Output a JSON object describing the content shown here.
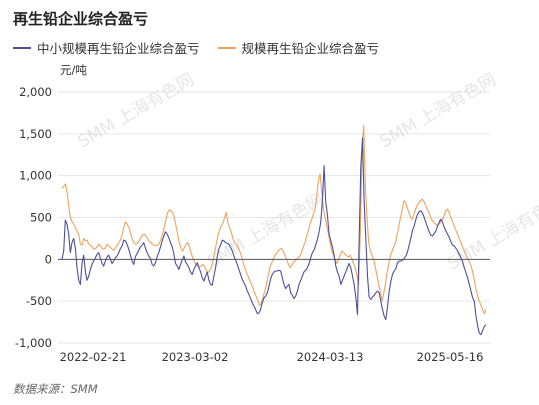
{
  "title": "再生铅企业综合盈亏",
  "source": "数据来源：SMM",
  "watermark": "SMM 上海有色网",
  "colors": {
    "small": "#4d4f9a",
    "large": "#f0a35e",
    "grid": "#e6e6e6",
    "zero": "#555555"
  },
  "chart_data": {
    "type": "line",
    "title": "再生铅企业综合盈亏",
    "ylabel": "元/吨",
    "ylim": [
      -1000,
      2000
    ],
    "yticks": [
      2000,
      1500,
      1000,
      500,
      0,
      -500,
      -1000
    ],
    "ytick_labels": [
      "2,000",
      "1,500",
      "1,000",
      "500",
      "0",
      "-500",
      "-1,000"
    ],
    "xtick_labels": [
      "2022-02-21",
      "2023-03-02",
      "2024-03-13",
      "2025-05-16"
    ],
    "grid": true,
    "legend": "top-left",
    "series": [
      {
        "name": "中小规模再生铅企业综合盈亏",
        "color": "#4d4f9a",
        "values": [
          0,
          100,
          470,
          420,
          300,
          80,
          200,
          250,
          130,
          -100,
          -250,
          -300,
          -50,
          50,
          -150,
          -250,
          -200,
          -120,
          -60,
          -20,
          20,
          60,
          80,
          10,
          -50,
          -80,
          -20,
          30,
          50,
          0,
          -50,
          -20,
          20,
          40,
          80,
          130,
          160,
          230,
          220,
          180,
          120,
          50,
          -20,
          -60,
          30,
          70,
          110,
          150,
          170,
          200,
          130,
          80,
          40,
          10,
          -60,
          -80,
          -40,
          30,
          80,
          150,
          220,
          280,
          330,
          300,
          260,
          200,
          150,
          70,
          -50,
          -80,
          -120,
          -60,
          -10,
          40,
          -30,
          -60,
          -100,
          -150,
          -180,
          -120,
          -80,
          -40,
          -100,
          -150,
          -220,
          -260,
          -200,
          -150,
          -250,
          -300,
          -310,
          -200,
          -100,
          30,
          130,
          170,
          230,
          220,
          200,
          190,
          180,
          140,
          100,
          40,
          -10,
          -60,
          -120,
          -180,
          -240,
          -280,
          -320,
          -380,
          -420,
          -470,
          -520,
          -560,
          -600,
          -650,
          -640,
          -600,
          -520,
          -460,
          -440,
          -400,
          -320,
          -230,
          -180,
          -150,
          -140,
          -140,
          -130,
          -140,
          -220,
          -300,
          -350,
          -320,
          -300,
          -400,
          -430,
          -470,
          -440,
          -380,
          -300,
          -250,
          -200,
          -150,
          -130,
          -100,
          -50,
          20,
          80,
          110,
          170,
          240,
          330,
          440,
          700,
          1120,
          690,
          530,
          300,
          220,
          150,
          50,
          -80,
          -150,
          -200,
          -300,
          -250,
          -200,
          -150,
          -100,
          -50,
          -100,
          -200,
          -300,
          -450,
          -660,
          200,
          1100,
          1450,
          700,
          250,
          -200,
          -450,
          -480,
          -450,
          -430,
          -400,
          -380,
          -400,
          -500,
          -600,
          -680,
          -720,
          -570,
          -380,
          -260,
          -180,
          -140,
          -110,
          -40,
          -20,
          -20,
          -10,
          10,
          40,
          90,
          170,
          260,
          350,
          400,
          480,
          540,
          570,
          580,
          550,
          500,
          440,
          380,
          330,
          290,
          280,
          310,
          340,
          400,
          450,
          480,
          440,
          380,
          340,
          300,
          260,
          210,
          170,
          160,
          130,
          100,
          60,
          20,
          -30,
          -100,
          -160,
          -220,
          -300,
          -380,
          -460,
          -500,
          -680,
          -800,
          -880,
          -900,
          -850,
          -800,
          -780
        ]
      },
      {
        "name": "规模再生铅企业综合盈亏",
        "color": "#f0a35e",
        "values": [
          850,
          870,
          900,
          810,
          640,
          500,
          450,
          420,
          380,
          330,
          300,
          180,
          170,
          250,
          220,
          230,
          180,
          160,
          150,
          120,
          130,
          150,
          180,
          160,
          130,
          120,
          140,
          180,
          160,
          140,
          120,
          110,
          140,
          170,
          200,
          240,
          300,
          400,
          450,
          410,
          380,
          300,
          240,
          200,
          180,
          190,
          220,
          260,
          290,
          300,
          280,
          250,
          220,
          200,
          180,
          170,
          160,
          170,
          190,
          240,
          300,
          380,
          470,
          560,
          590,
          580,
          560,
          500,
          400,
          300,
          200,
          130,
          100,
          140,
          180,
          200,
          150,
          80,
          20,
          -30,
          -60,
          -80,
          -90,
          -80,
          -60,
          -80,
          -130,
          -160,
          -140,
          -100,
          -30,
          70,
          180,
          280,
          350,
          400,
          430,
          500,
          560,
          440,
          380,
          320,
          250,
          200,
          180,
          150,
          100,
          50,
          -30,
          -100,
          -150,
          -200,
          -250,
          -300,
          -350,
          -400,
          -450,
          -500,
          -550,
          -520,
          -450,
          -380,
          -300,
          -200,
          -100,
          -50,
          0,
          50,
          70,
          100,
          120,
          130,
          100,
          50,
          0,
          -50,
          -100,
          -80,
          -30,
          -20,
          0,
          20,
          40,
          90,
          150,
          200,
          280,
          350,
          420,
          480,
          540,
          600,
          750,
          950,
          1020,
          800,
          600,
          500,
          400,
          300,
          200,
          100,
          50,
          0,
          -50,
          0,
          50,
          100,
          80,
          60,
          40,
          30,
          50,
          0,
          -50,
          -100,
          -200,
          -300,
          300,
          1300,
          1600,
          900,
          500,
          200,
          100,
          50,
          0,
          -100,
          -200,
          -300,
          -400,
          -500,
          -400,
          -300,
          -150,
          -50,
          50,
          100,
          150,
          200,
          300,
          400,
          500,
          600,
          700,
          680,
          620,
          560,
          500,
          480,
          540,
          600,
          650,
          680,
          700,
          720,
          690,
          640,
          600,
          560,
          500,
          460,
          440,
          420,
          400,
          420,
          450,
          480,
          520,
          580,
          600,
          560,
          500,
          450,
          400,
          350,
          300,
          250,
          200,
          150,
          100,
          50,
          20,
          -30,
          -70,
          -150,
          -250,
          -350,
          -430,
          -500,
          -550,
          -600,
          -650,
          -600
        ]
      }
    ]
  }
}
